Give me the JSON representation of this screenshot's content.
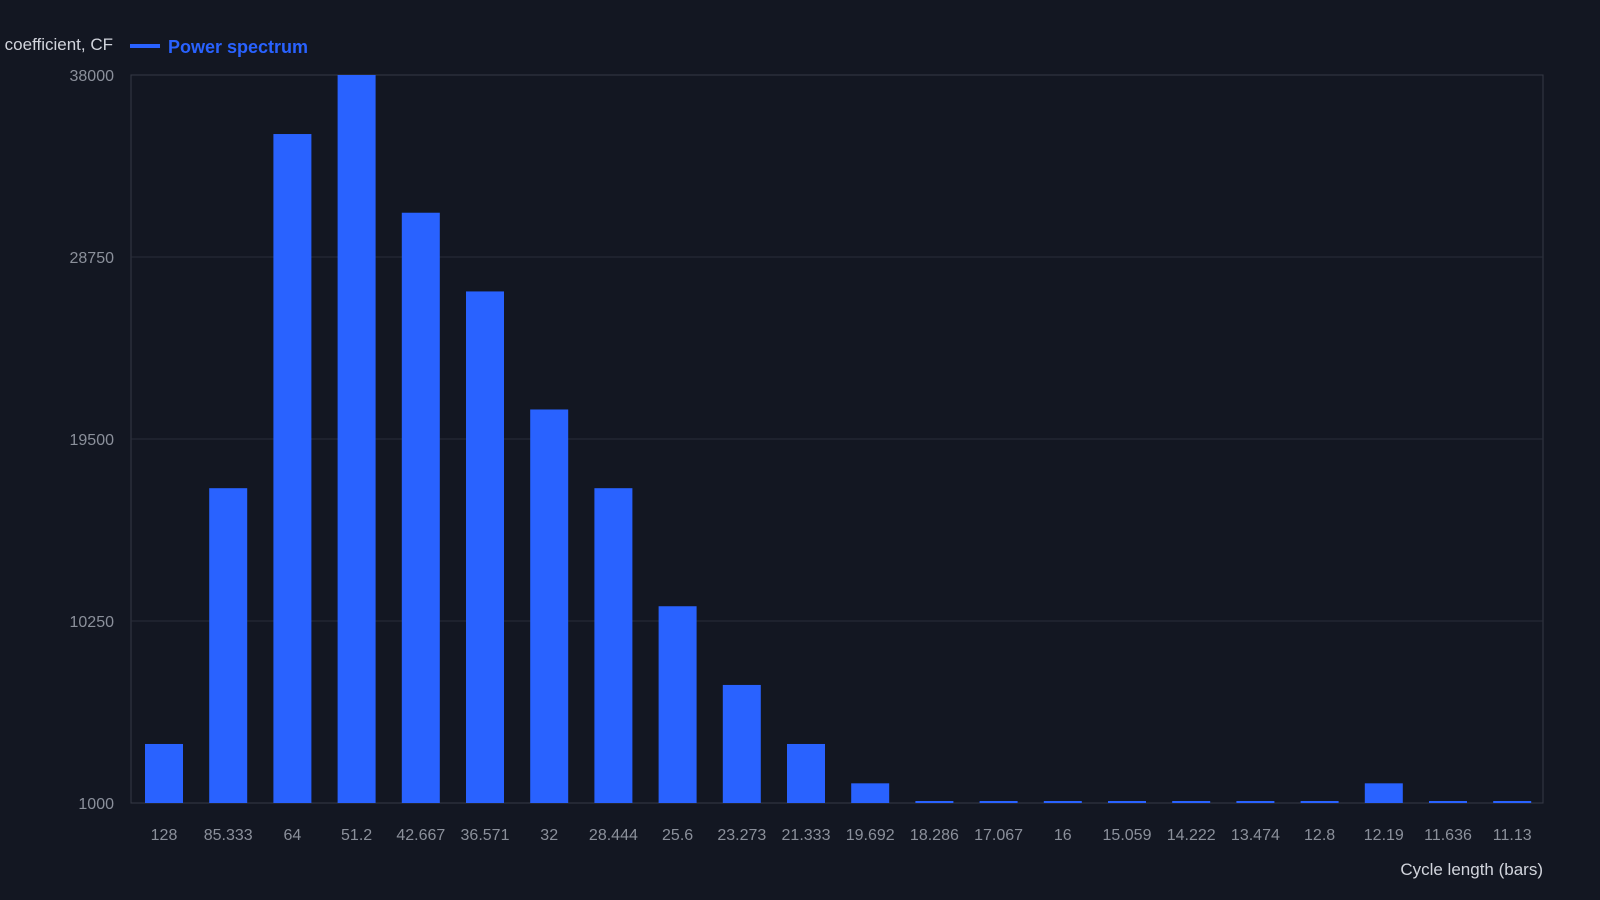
{
  "colors": {
    "background": "#131722",
    "bar": "#2962ff",
    "grid": "#2a2e39",
    "axis": "#363a45",
    "tick_text": "#8b909b",
    "label_text": "#d1d4dc"
  },
  "chart_data": {
    "type": "bar",
    "ylabel": "coefficient, CF",
    "xlabel": "Cycle length (bars)",
    "ylim": [
      1000,
      38000
    ],
    "yticks": [
      "1000",
      "10250",
      "19500",
      "28750",
      "38000"
    ],
    "grid": true,
    "legend_position": "top-left",
    "categories": [
      "128",
      "85.333",
      "64",
      "51.2",
      "42.667",
      "36.571",
      "32",
      "28.444",
      "25.6",
      "23.273",
      "21.333",
      "19.692",
      "18.286",
      "17.067",
      "16",
      "15.059",
      "14.222",
      "13.474",
      "12.8",
      "12.19",
      "11.636",
      "11.13"
    ],
    "series": [
      {
        "name": "Power spectrum",
        "color": "#2962ff",
        "values": [
          4000,
          17000,
          35000,
          38000,
          31000,
          27000,
          21000,
          17000,
          11000,
          7000,
          4000,
          2000,
          1000,
          1000,
          1000,
          1000,
          1000,
          1000,
          1000,
          2000,
          1000,
          1000
        ]
      }
    ]
  }
}
